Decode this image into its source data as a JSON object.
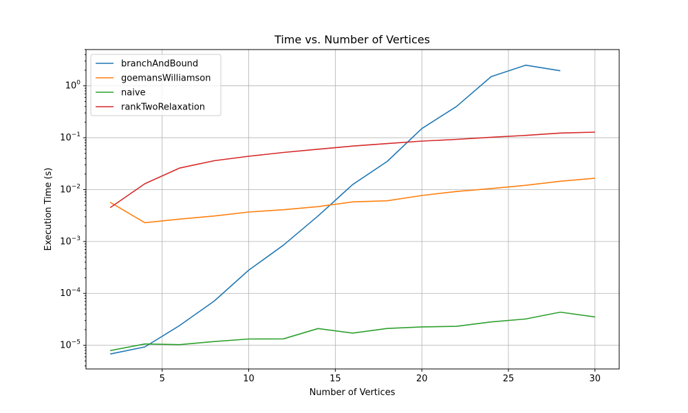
{
  "chart_data": {
    "type": "line",
    "title": "Time vs. Number of Vertices",
    "xlabel": "Number of Vertices",
    "ylabel": "Execution Time (s)",
    "yscale": "log",
    "xlim": [
      0.6,
      31.4
    ],
    "ylim": [
      3.5e-06,
      5
    ],
    "grid": true,
    "legend_position": "upper-left",
    "x_ticks": [
      5,
      10,
      15,
      20,
      25,
      30
    ],
    "y_ticks": [
      {
        "value": 1e-05,
        "base": "10",
        "exp": "−5"
      },
      {
        "value": 0.0001,
        "base": "10",
        "exp": "−4"
      },
      {
        "value": 0.001,
        "base": "10",
        "exp": "−3"
      },
      {
        "value": 0.01,
        "base": "10",
        "exp": "−2"
      },
      {
        "value": 0.1,
        "base": "10",
        "exp": "−1"
      },
      {
        "value": 1,
        "base": "10",
        "exp": "0"
      }
    ],
    "series": [
      {
        "name": "branchAndBound",
        "color": "#1f77b4",
        "x": [
          2,
          4,
          6,
          8,
          10,
          12,
          14,
          16,
          18,
          20,
          22,
          24,
          26,
          28
        ],
        "values": [
          6.8e-06,
          9.3e-06,
          2.4e-05,
          7.1e-05,
          0.00028,
          0.00085,
          0.0031,
          0.0125,
          0.035,
          0.15,
          0.4,
          1.5,
          2.5,
          1.95
        ]
      },
      {
        "name": "goemansWilliamson",
        "color": "#ff7f0e",
        "x": [
          2,
          4,
          6,
          8,
          10,
          12,
          14,
          16,
          18,
          20,
          22,
          24,
          26,
          28,
          30
        ],
        "values": [
          0.0057,
          0.0023,
          0.0027,
          0.0031,
          0.0037,
          0.0041,
          0.0047,
          0.0058,
          0.0061,
          0.0077,
          0.0092,
          0.0105,
          0.0121,
          0.0145,
          0.0166
        ]
      },
      {
        "name": "naive",
        "color": "#2ca02c",
        "x": [
          2,
          4,
          6,
          8,
          10,
          12,
          14,
          16,
          18,
          20,
          22,
          24,
          26,
          28,
          30
        ],
        "values": [
          7.9e-06,
          1.06e-05,
          1.03e-05,
          1.18e-05,
          1.32e-05,
          1.33e-05,
          2.1e-05,
          1.72e-05,
          2.11e-05,
          2.26e-05,
          2.32e-05,
          2.82e-05,
          3.21e-05,
          4.35e-05,
          3.52e-05
        ]
      },
      {
        "name": "rankTwoRelaxation",
        "color": "#d62728",
        "x": [
          2,
          4,
          6,
          8,
          10,
          12,
          14,
          16,
          18,
          20,
          22,
          24,
          26,
          28,
          30
        ],
        "values": [
          0.0045,
          0.013,
          0.026,
          0.036,
          0.044,
          0.052,
          0.06,
          0.069,
          0.077,
          0.086,
          0.093,
          0.102,
          0.111,
          0.123,
          0.128
        ]
      }
    ]
  }
}
